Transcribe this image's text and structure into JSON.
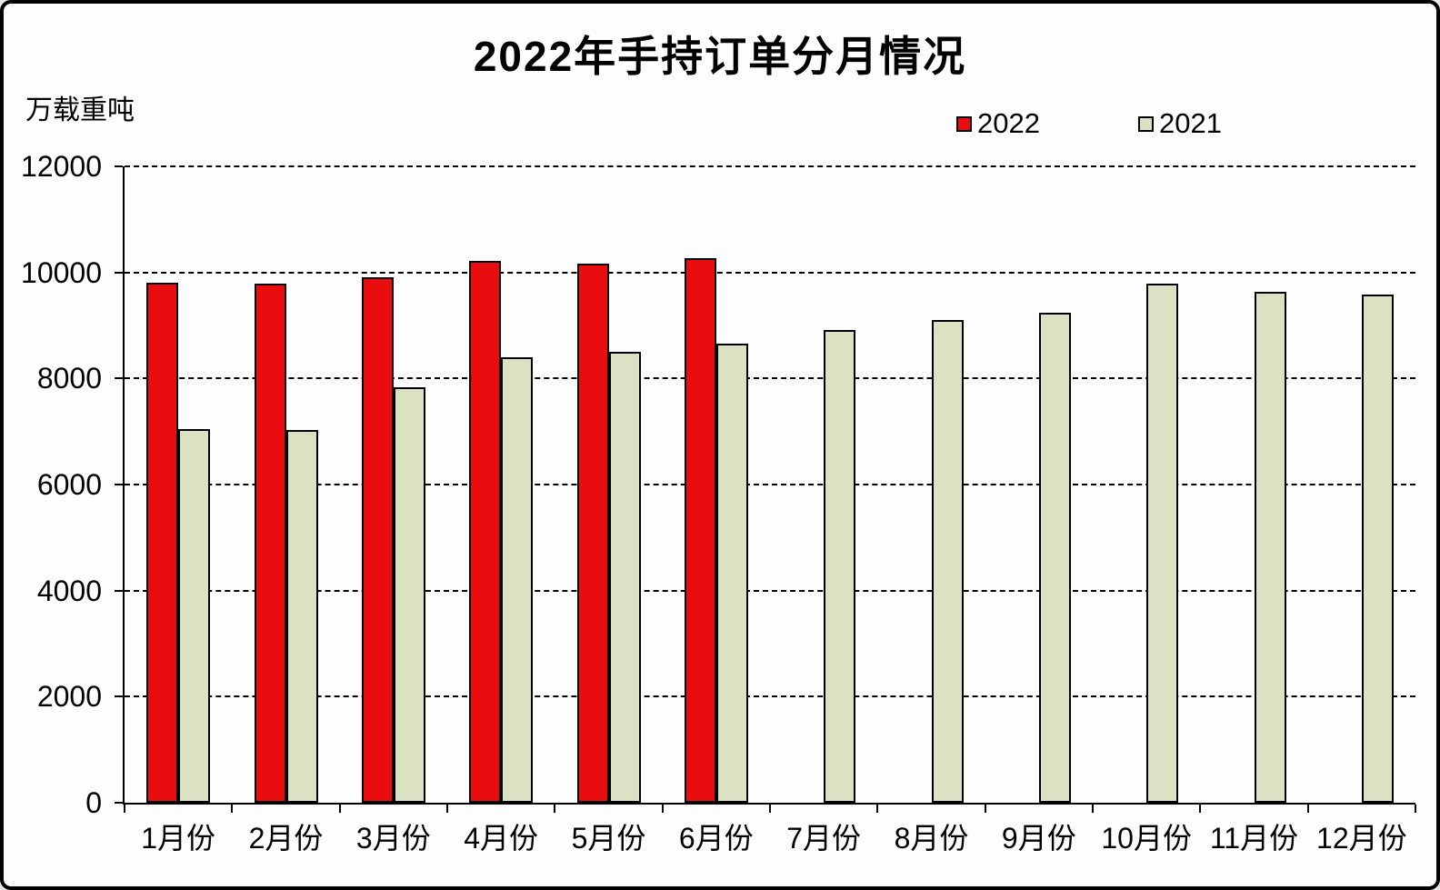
{
  "chart_data": {
    "type": "bar",
    "title": "2022年手持订单分月情况",
    "ylabel": "万载重吨",
    "xlabel": "",
    "categories": [
      "1月份",
      "2月份",
      "3月份",
      "4月份",
      "5月份",
      "6月份",
      "7月份",
      "8月份",
      "9月份",
      "10月份",
      "11月份",
      "12月份"
    ],
    "series": [
      {
        "name": "2022",
        "color": "#ea0d10",
        "values": [
          9810,
          9780,
          9910,
          10210,
          10160,
          10260,
          null,
          null,
          null,
          null,
          null,
          null
        ]
      },
      {
        "name": "2021",
        "color": "#dbe2c3",
        "values": [
          7050,
          7030,
          7830,
          8400,
          8500,
          8650,
          8920,
          9110,
          9240,
          9790,
          9640,
          9580
        ]
      }
    ],
    "ylim": [
      0,
      12000
    ],
    "ytick_step": 2000,
    "yticks": [
      0,
      2000,
      4000,
      6000,
      8000,
      10000,
      12000
    ],
    "grid": "horizontal-dashed",
    "legend_position": "top-right",
    "bar_outline_color": "#000000",
    "background_color": "#fdfdfd"
  }
}
